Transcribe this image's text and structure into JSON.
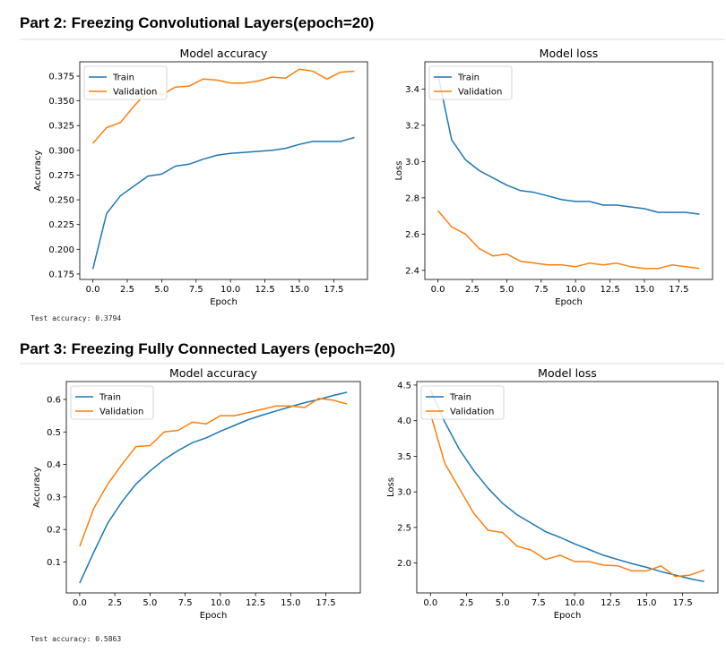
{
  "sections": [
    {
      "heading": "Part 2: Freezing Convolutional Layers(epoch=20)",
      "test_accuracy": "Test accuracy: 0.3794"
    },
    {
      "heading": "Part 3: Freezing Fully Connected Layers (epoch=20)",
      "test_accuracy": "Test accuracy: 0.5863"
    }
  ],
  "colors": {
    "train": "#1f77b4",
    "validation": "#ff7f0e"
  },
  "chart_data": [
    {
      "type": "line",
      "title": "Model accuracy",
      "xlabel": "Epoch",
      "ylabel": "Accuracy",
      "xlim": [
        -0.95,
        19.95
      ],
      "ylim": [
        0.1695,
        0.3895
      ],
      "xticks": [
        0,
        2.5,
        5,
        7.5,
        10,
        12.5,
        15,
        17.5
      ],
      "xtick_labels": [
        "0.0",
        "2.5",
        "5.0",
        "7.5",
        "10.0",
        "12.5",
        "15.0",
        "17.5"
      ],
      "yticks": [
        0.175,
        0.2,
        0.225,
        0.25,
        0.275,
        0.3,
        0.325,
        0.35,
        0.375
      ],
      "ytick_labels": [
        "0.175",
        "0.200",
        "0.225",
        "0.250",
        "0.275",
        "0.300",
        "0.325",
        "0.350",
        "0.375"
      ],
      "legend_position": "top-left",
      "x": [
        0,
        1,
        2,
        3,
        4,
        5,
        6,
        7,
        8,
        9,
        10,
        11,
        12,
        13,
        14,
        15,
        16,
        17,
        18,
        19
      ],
      "series": [
        {
          "name": "Train",
          "values": [
            0.18,
            0.236,
            0.254,
            0.264,
            0.274,
            0.276,
            0.284,
            0.286,
            0.291,
            0.295,
            0.297,
            0.298,
            0.299,
            0.3,
            0.302,
            0.306,
            0.309,
            0.309,
            0.309,
            0.313
          ]
        },
        {
          "name": "Validation",
          "values": [
            0.307,
            0.323,
            0.328,
            0.345,
            0.36,
            0.356,
            0.364,
            0.365,
            0.372,
            0.371,
            0.368,
            0.368,
            0.37,
            0.374,
            0.373,
            0.382,
            0.38,
            0.372,
            0.379,
            0.38
          ]
        }
      ]
    },
    {
      "type": "line",
      "title": "Model loss",
      "xlabel": "Epoch",
      "ylabel": "Loss",
      "xlim": [
        -0.95,
        19.95
      ],
      "ylim": [
        2.35,
        3.55
      ],
      "xticks": [
        0,
        2.5,
        5,
        7.5,
        10,
        12.5,
        15,
        17.5
      ],
      "xtick_labels": [
        "0.0",
        "2.5",
        "5.0",
        "7.5",
        "10.0",
        "12.5",
        "15.0",
        "17.5"
      ],
      "yticks": [
        2.4,
        2.6,
        2.8,
        3.0,
        3.2,
        3.4
      ],
      "ytick_labels": [
        "2.4",
        "2.6",
        "2.8",
        "3.0",
        "3.2",
        "3.4"
      ],
      "legend_position": "top-left",
      "x": [
        0,
        1,
        2,
        3,
        4,
        5,
        6,
        7,
        8,
        9,
        10,
        11,
        12,
        13,
        14,
        15,
        16,
        17,
        18,
        19
      ],
      "series": [
        {
          "name": "Train",
          "values": [
            3.48,
            3.12,
            3.01,
            2.95,
            2.91,
            2.87,
            2.84,
            2.83,
            2.81,
            2.79,
            2.78,
            2.78,
            2.76,
            2.76,
            2.75,
            2.74,
            2.72,
            2.72,
            2.72,
            2.71
          ]
        },
        {
          "name": "Validation",
          "values": [
            2.73,
            2.64,
            2.6,
            2.52,
            2.48,
            2.49,
            2.45,
            2.44,
            2.43,
            2.43,
            2.42,
            2.44,
            2.43,
            2.44,
            2.42,
            2.41,
            2.41,
            2.43,
            2.42,
            2.41
          ]
        }
      ]
    },
    {
      "type": "line",
      "title": "Model accuracy",
      "xlabel": "Epoch",
      "ylabel": "Accuracy",
      "xlim": [
        -0.95,
        19.95
      ],
      "ylim": [
        0.005,
        0.655
      ],
      "xticks": [
        0,
        2.5,
        5,
        7.5,
        10,
        12.5,
        15,
        17.5
      ],
      "xtick_labels": [
        "0.0",
        "2.5",
        "5.0",
        "7.5",
        "10.0",
        "12.5",
        "15.0",
        "17.5"
      ],
      "yticks": [
        0.1,
        0.2,
        0.3,
        0.4,
        0.5,
        0.6
      ],
      "ytick_labels": [
        "0.1",
        "0.2",
        "0.3",
        "0.4",
        "0.5",
        "0.6"
      ],
      "legend_position": "top-left",
      "x": [
        0,
        1,
        2,
        3,
        4,
        5,
        6,
        7,
        8,
        9,
        10,
        11,
        12,
        13,
        14,
        15,
        16,
        17,
        18,
        19
      ],
      "series": [
        {
          "name": "Train",
          "values": [
            0.035,
            0.13,
            0.22,
            0.285,
            0.34,
            0.38,
            0.415,
            0.443,
            0.467,
            0.482,
            0.502,
            0.52,
            0.538,
            0.552,
            0.565,
            0.578,
            0.59,
            0.6,
            0.612,
            0.622
          ]
        },
        {
          "name": "Validation",
          "values": [
            0.148,
            0.265,
            0.34,
            0.4,
            0.455,
            0.458,
            0.5,
            0.505,
            0.53,
            0.525,
            0.55,
            0.55,
            0.56,
            0.57,
            0.58,
            0.58,
            0.575,
            0.603,
            0.598,
            0.586
          ]
        }
      ]
    },
    {
      "type": "line",
      "title": "Model loss",
      "xlabel": "Epoch",
      "ylabel": "Loss",
      "xlim": [
        -0.95,
        19.95
      ],
      "ylim": [
        1.58,
        4.55
      ],
      "xticks": [
        0,
        2.5,
        5,
        7.5,
        10,
        12.5,
        15,
        17.5
      ],
      "xtick_labels": [
        "0.0",
        "2.5",
        "5.0",
        "7.5",
        "10.0",
        "12.5",
        "15.0",
        "17.5"
      ],
      "yticks": [
        2.0,
        2.5,
        3.0,
        3.5,
        4.0,
        4.5
      ],
      "ytick_labels": [
        "2.0",
        "2.5",
        "3.0",
        "3.5",
        "4.0",
        "4.5"
      ],
      "legend_position": "top-left",
      "x": [
        0,
        1,
        2,
        3,
        4,
        5,
        6,
        7,
        8,
        9,
        10,
        11,
        12,
        13,
        14,
        15,
        16,
        17,
        18,
        19
      ],
      "series": [
        {
          "name": "Train",
          "values": [
            4.43,
            3.98,
            3.6,
            3.3,
            3.05,
            2.84,
            2.68,
            2.56,
            2.44,
            2.36,
            2.27,
            2.19,
            2.11,
            2.05,
            1.99,
            1.94,
            1.88,
            1.83,
            1.78,
            1.74
          ]
        },
        {
          "name": "Validation",
          "values": [
            4.1,
            3.4,
            3.05,
            2.7,
            2.46,
            2.43,
            2.24,
            2.18,
            2.05,
            2.11,
            2.02,
            2.02,
            1.97,
            1.96,
            1.89,
            1.89,
            1.96,
            1.81,
            1.83,
            1.9
          ]
        }
      ]
    }
  ]
}
